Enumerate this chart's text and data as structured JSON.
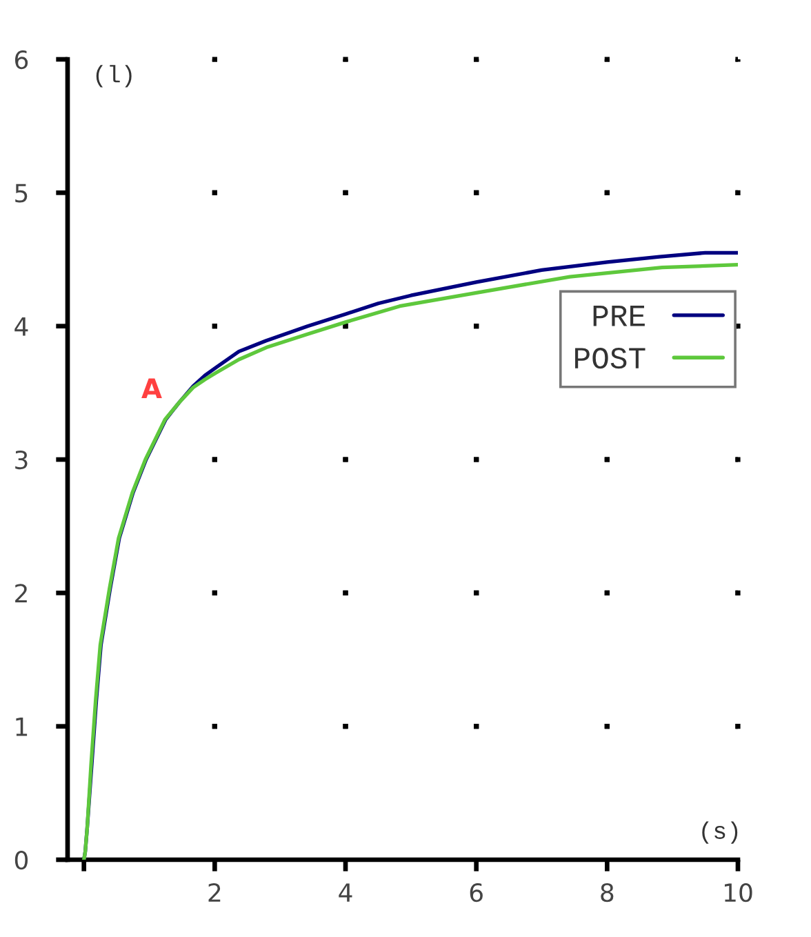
{
  "chart_data": {
    "type": "line",
    "xlabel": "(s)",
    "ylabel": "(l)",
    "xlim": [
      -0.25,
      10
    ],
    "ylim": [
      0,
      6
    ],
    "xticks": [
      {
        "value": 0,
        "label": null
      },
      2,
      4,
      6,
      8,
      10
    ],
    "yticks": [
      0,
      1,
      2,
      3,
      4,
      5,
      6
    ],
    "grid": true,
    "legend": "top right",
    "annotations": [
      "A"
    ],
    "series": [
      {
        "name": "PRE",
        "color": "#000080",
        "x": [
          0,
          0.02,
          0.05,
          0.12,
          0.19,
          0.26,
          0.4,
          0.54,
          0.75,
          0.95,
          1.25,
          1.46,
          1.67,
          1.85,
          2.02,
          2.37,
          2.78,
          3.42,
          4.0,
          4.5,
          5.0,
          6.0,
          7.0,
          7.5,
          8.0,
          8.8,
          9.5,
          10.0
        ],
        "values": [
          0,
          0.06,
          0.24,
          0.72,
          1.2,
          1.61,
          2.03,
          2.41,
          2.75,
          3.0,
          3.3,
          3.43,
          3.55,
          3.63,
          3.69,
          3.81,
          3.89,
          4.0,
          4.09,
          4.17,
          4.23,
          4.33,
          4.42,
          4.45,
          4.48,
          4.52,
          4.55,
          4.55
        ]
      },
      {
        "name": "POST",
        "color": "#5ec83c",
        "x": [
          0,
          0.02,
          0.05,
          0.11,
          0.18,
          0.25,
          0.39,
          0.53,
          0.74,
          0.94,
          1.24,
          1.46,
          1.67,
          1.85,
          2.02,
          2.37,
          2.79,
          3.42,
          4.0,
          4.83,
          6.0,
          7.43,
          8.84,
          10.0
        ],
        "values": [
          0,
          0.06,
          0.24,
          0.72,
          1.2,
          1.61,
          2.03,
          2.41,
          2.75,
          3.0,
          3.3,
          3.43,
          3.54,
          3.6,
          3.65,
          3.75,
          3.84,
          3.94,
          4.03,
          4.15,
          4.25,
          4.37,
          4.44,
          4.46
        ]
      }
    ]
  }
}
